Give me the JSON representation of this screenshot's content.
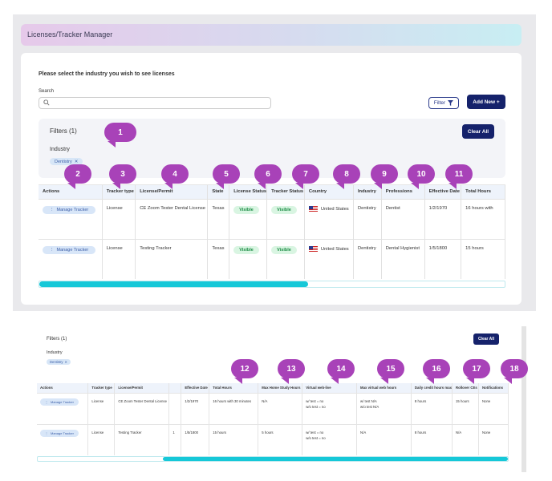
{
  "page": {
    "title": "Licenses/Tracker Manager",
    "prompt": "Please select the industry you wish to see licenses",
    "search_label": "Search",
    "search_placeholder": "",
    "filter_button": "Filter",
    "add_new_button": "Add New +"
  },
  "filters": {
    "title": "Filters (1)",
    "industry_label": "Industry",
    "chip": "Dentistry",
    "clear_all": "Clear All"
  },
  "table": {
    "columns": [
      "Actions",
      "Tracker type",
      "License/Permit",
      "State",
      "License Status",
      "Tracker Status",
      "Country",
      "Industry",
      "Professions",
      "Effective Date",
      "Total Hours"
    ],
    "rows": [
      {
        "action": "Manage Tracker",
        "type": "License",
        "license": "CE Zoom Tester Dental License",
        "state": "Texas",
        "license_status": "Visible",
        "tracker_status": "Visible",
        "country": "United States",
        "industry": "Dentistry",
        "profession": "Dentist",
        "effective": "1/2/1970",
        "hours": "16 hours with"
      },
      {
        "action": "Manage Tracker",
        "type": "License",
        "license": "Testing Tracker",
        "state": "Texas",
        "license_status": "Visible",
        "tracker_status": "Visible",
        "country": "United States",
        "industry": "Dentistry",
        "profession": "Dental Hygienist",
        "effective": "1/5/1800",
        "hours": "15 hours"
      }
    ]
  },
  "table2": {
    "columns": [
      "Actions",
      "Tracker type",
      "License/Permit",
      "",
      "Effective Date",
      "Total Hours",
      "Max Home Study Hours",
      "Virtual web-live",
      "Max virtual web hours",
      "Daily credit hours max",
      "Rollover CEs",
      "Notifications"
    ],
    "rows": [
      {
        "action": "Manage Tracker",
        "type": "License",
        "license": "CE Zoom Tester Dental License",
        "cut": "",
        "effective": "1/2/1970",
        "hours": "16 hours with 30 minutes",
        "home_study": "N/A",
        "web_live_1": "w/ test = no",
        "web_live_2": "w/o test = no",
        "web_max_1": "w/ test N/A",
        "web_max_2": "w/o test N/A",
        "daily": "8 hours",
        "rollover": "15 hours",
        "notifications": "None"
      },
      {
        "action": "Manage Tracker",
        "type": "License",
        "license": "Testing Tracker",
        "cut": "1",
        "effective": "1/5/1800",
        "hours": "15 hours",
        "home_study": "5 hours",
        "web_live_1": "w/ test = no",
        "web_live_2": "w/o test = no",
        "web_max_1": "N/A",
        "web_max_2": "",
        "daily": "8 hours",
        "rollover": "N/A",
        "notifications": "None"
      }
    ]
  },
  "callouts": [
    "1",
    "2",
    "3",
    "4",
    "5",
    "6",
    "7",
    "8",
    "9",
    "10",
    "11",
    "12",
    "13",
    "14",
    "15",
    "16",
    "17",
    "18"
  ],
  "colors": {
    "accent": "#15226b",
    "callout": "#a842b8",
    "scroll": "#16c8d8",
    "badge_bg": "#d9f5e2",
    "badge_fg": "#1c8c45"
  }
}
